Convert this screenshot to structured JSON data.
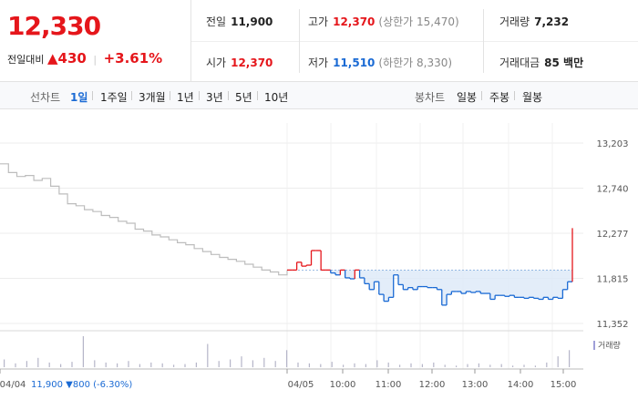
{
  "summary": {
    "price": "12,330",
    "change_label": "전일대비",
    "change_arrow": "▲",
    "change_value": "430",
    "change_pct": "+3.61%"
  },
  "info": {
    "prev_close_label": "전일",
    "prev_close": "11,900",
    "high_label": "고가",
    "high": "12,370",
    "upper_limit": "(상한가 15,470)",
    "volume_label": "거래량",
    "volume": "7,232",
    "open_label": "시가",
    "open": "12,370",
    "low_label": "저가",
    "low": "11,510",
    "lower_limit": "(하한가 8,330)",
    "amount_label": "거래대금",
    "amount": "85 백만"
  },
  "tabs": {
    "line_label": "선차트",
    "line_tabs": [
      "1일",
      "1주일",
      "3개월",
      "1년",
      "3년",
      "5년",
      "10년"
    ],
    "active_line_tab": "1일",
    "candle_label": "봉차트",
    "candle_tabs": [
      "일봉",
      "주봉",
      "월봉"
    ]
  },
  "colors": {
    "up": "#e5161b",
    "down": "#1a6ad4",
    "prev_day_line": "#bdbdbd",
    "band_fill": "#dce9f7"
  },
  "chart_data": {
    "type": "line",
    "y_ticks": [
      "13,203",
      "12,740",
      "12,277",
      "11,815",
      "11,352"
    ],
    "y_tick_values": [
      13203,
      12740,
      12277,
      11815,
      11352
    ],
    "ylim": [
      11352,
      13203
    ],
    "baseline": 11900,
    "x_labels": [
      "04/04",
      "04/05",
      "10:00",
      "11:00",
      "12:00",
      "13:00",
      "14:00",
      "15:00"
    ],
    "prev_day_label": "04/04",
    "prev_day_summary": "11,900 ▼800 (-6.30%)",
    "volume_legend": "거래량",
    "series": [
      {
        "name": "04/04",
        "values": [
          12990,
          12900,
          12860,
          12870,
          12820,
          12840,
          12760,
          12680,
          12580,
          12560,
          12520,
          12500,
          12460,
          12440,
          12400,
          12380,
          12320,
          12300,
          12260,
          12240,
          12210,
          12180,
          12160,
          12120,
          12090,
          12060,
          12030,
          12010,
          11990,
          11960,
          11930,
          11900,
          11880,
          11850,
          11900
        ]
      },
      {
        "name": "04/05",
        "values": [
          11900,
          11900,
          11980,
          11940,
          11950,
          12100,
          12100,
          11900,
          11900,
          11870,
          11850,
          11900,
          11820,
          11810,
          11900,
          11820,
          11760,
          11700,
          11780,
          11650,
          11580,
          11620,
          11850,
          11750,
          11700,
          11720,
          11700,
          11730,
          11730,
          11720,
          11720,
          11700,
          11540,
          11650,
          11680,
          11680,
          11660,
          11680,
          11670,
          11680,
          11660,
          11660,
          11600,
          11640,
          11640,
          11630,
          11640,
          11620,
          11620,
          11610,
          11620,
          11610,
          11600,
          11620,
          11600,
          11620,
          11610,
          11700,
          11780,
          12330
        ]
      }
    ],
    "volume": [
      10,
      5,
      8,
      12,
      6,
      4,
      7,
      40,
      9,
      6,
      5,
      8,
      4,
      6,
      5,
      3,
      4,
      6,
      30,
      8,
      10,
      14,
      9,
      12,
      8,
      22,
      6,
      5,
      4,
      7,
      3,
      5,
      4,
      9,
      6,
      3,
      5,
      4,
      6,
      3,
      2,
      4,
      5,
      3,
      4,
      2,
      3,
      2,
      6,
      14,
      22
    ]
  }
}
